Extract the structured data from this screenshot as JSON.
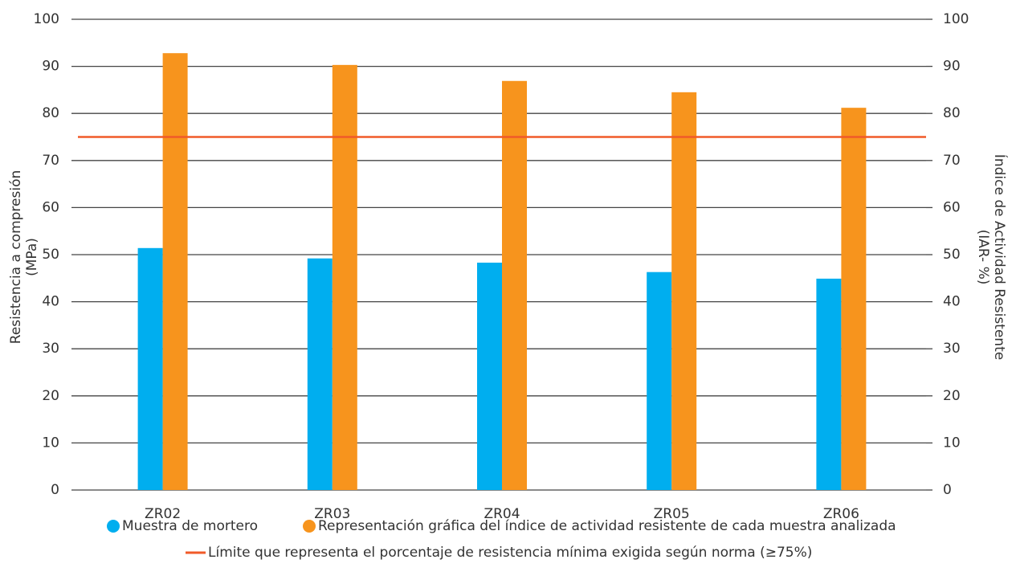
{
  "chart_data": {
    "type": "bar",
    "categories": [
      "ZR02",
      "ZR03",
      "ZR04",
      "ZR05",
      "ZR06"
    ],
    "series": [
      {
        "name": "Muestra de mortero",
        "color": "#00aeef",
        "values": [
          51.4,
          49.2,
          48.3,
          46.3,
          44.9
        ]
      },
      {
        "name": "Representación gráfica del índice de actividad resistente de cada muestra analizada",
        "color": "#f7941d",
        "axis": "y2",
        "values": [
          92.8,
          90.3,
          86.9,
          84.5,
          81.2
        ]
      }
    ],
    "reference_line": {
      "name": "Límite que representa el porcentaje de resistencia mínima exigida según norma (≥75%)",
      "value": 75,
      "color": "#f15a29",
      "axis": "y2"
    },
    "ylabel": [
      "Resistencia a compresión",
      "(MPa)"
    ],
    "y2label": [
      "Índice de Actividad Resistente",
      "(IAR- %)"
    ],
    "ylim": [
      0,
      100
    ],
    "yticks": [
      0,
      10,
      20,
      30,
      40,
      50,
      60,
      70,
      80,
      90,
      100
    ],
    "y2lim": [
      0,
      100
    ],
    "y2ticks": [
      0,
      10,
      20,
      30,
      40,
      50,
      60,
      70,
      80,
      90,
      100
    ],
    "grid": true
  }
}
